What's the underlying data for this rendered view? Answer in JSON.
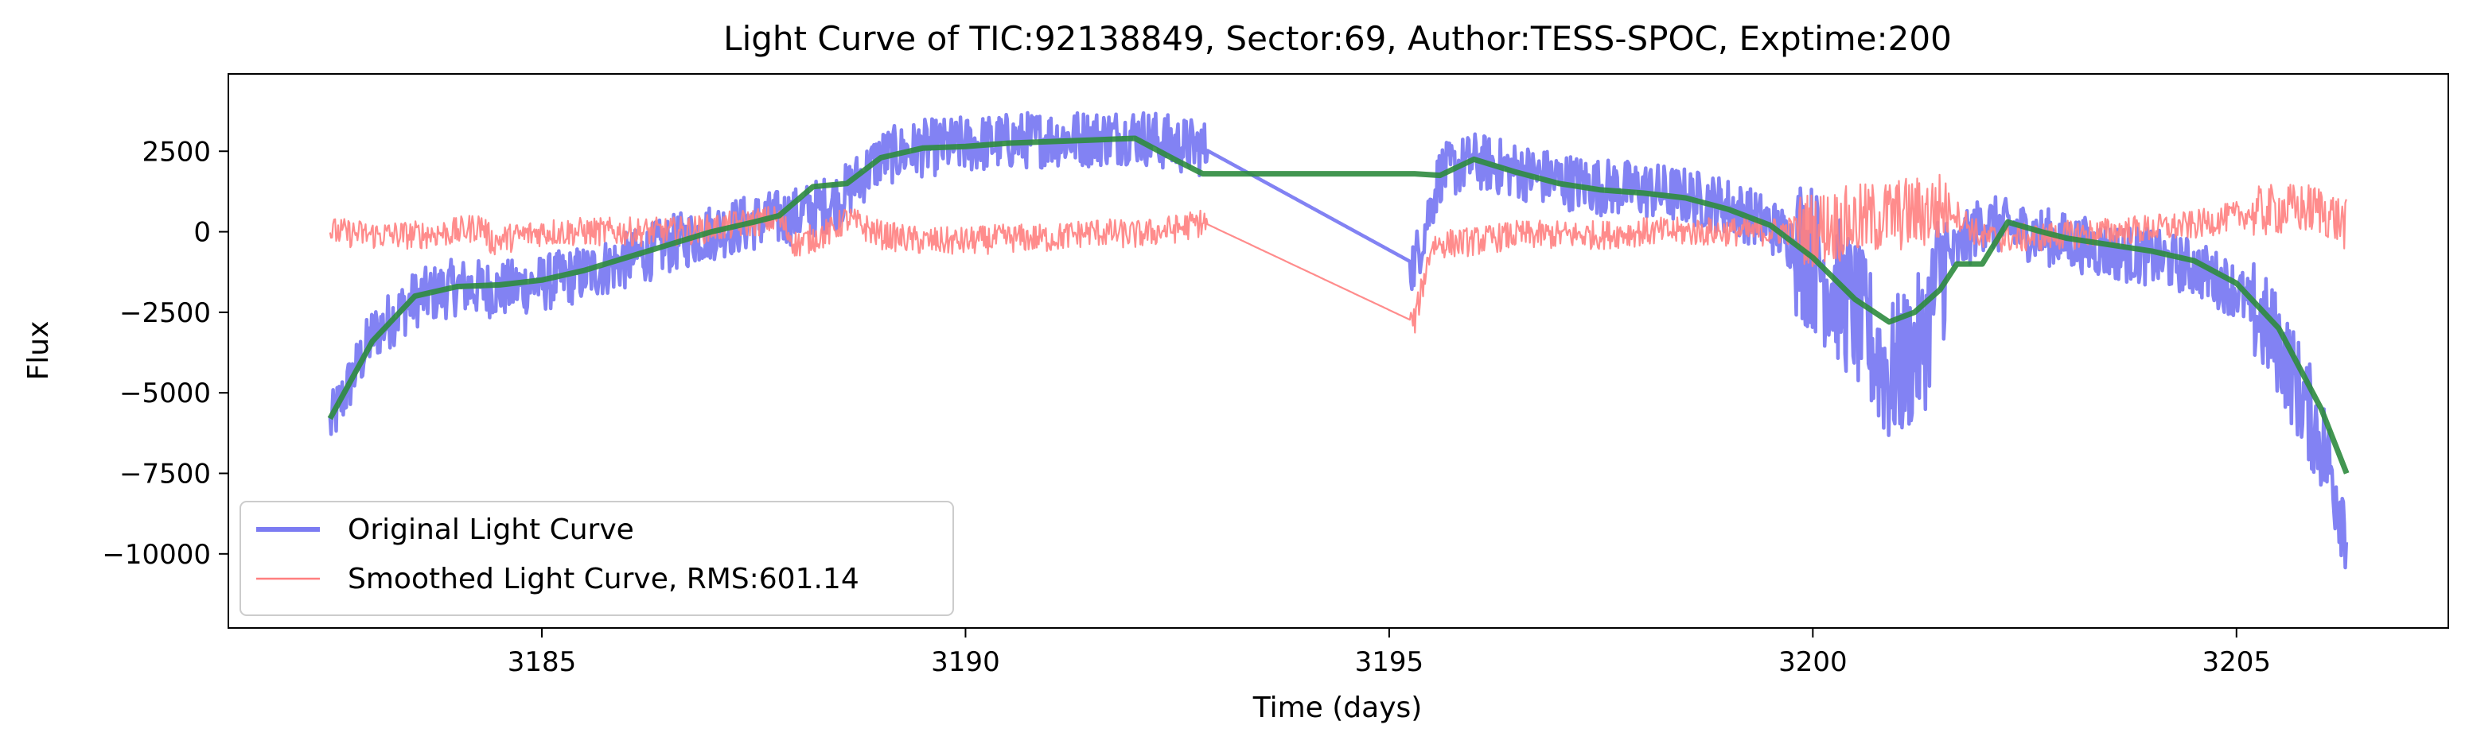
{
  "chart_data": {
    "type": "line",
    "title": "Light Curve of TIC:92138849, Sector:69, Author:TESS-SPOC, Exptime:200",
    "xlabel": "Time (days)",
    "ylabel": "Flux",
    "xlim": [
      3181.3,
      3207.5
    ],
    "ylim": [
      -12300,
      4900
    ],
    "xticks": [
      {
        "value": 3185,
        "label": "3185"
      },
      {
        "value": 3190,
        "label": "3190"
      },
      {
        "value": 3195,
        "label": "3195"
      },
      {
        "value": 3200,
        "label": "3200"
      },
      {
        "value": 3205,
        "label": "3205"
      }
    ],
    "yticks": [
      {
        "value": 2500,
        "label": "2500"
      },
      {
        "value": 0,
        "label": "0"
      },
      {
        "value": -2500,
        "label": "−2500"
      },
      {
        "value": -5000,
        "label": "−5000"
      },
      {
        "value": -7500,
        "label": "−7500"
      },
      {
        "value": -10000,
        "label": "−10000"
      }
    ],
    "grid": false,
    "legend_position": "lower-left",
    "series": [
      {
        "name": "Original Light Curve",
        "color": "#7b7bf2",
        "style": "thick-noisy",
        "noise_amplitude": 900,
        "x": [
          3182.5,
          3183.0,
          3183.5,
          3184.0,
          3184.5,
          3185.0,
          3185.5,
          3186.0,
          3186.5,
          3187.0,
          3187.5,
          3188.0,
          3188.5,
          3189.0,
          3189.5,
          3190.0,
          3190.5,
          3191.0,
          3191.5,
          3192.0,
          3192.5,
          3192.8,
          3195.3,
          3195.6,
          3196.0,
          3196.5,
          3197.0,
          3197.5,
          3198.0,
          3198.5,
          3199.0,
          3199.5,
          3200.0,
          3200.5,
          3200.9,
          3201.3,
          3201.5,
          3202.0,
          3202.5,
          3203.0,
          3203.5,
          3204.0,
          3204.5,
          3205.0,
          3205.5,
          3206.0,
          3206.3
        ],
        "y": [
          -6000,
          -3200,
          -2100,
          -1700,
          -1800,
          -1600,
          -1300,
          -900,
          -400,
          0,
          300,
          500,
          1000,
          2300,
          2600,
          2700,
          2800,
          2900,
          2900,
          3000,
          2700,
          2600,
          -1000,
          1800,
          2200,
          1900,
          1600,
          1400,
          1300,
          1100,
          800,
          200,
          -800,
          -2500,
          -4500,
          -3500,
          -1200,
          300,
          0,
          -300,
          -600,
          -800,
          -1100,
          -1800,
          -3500,
          -6500,
          -9000
        ]
      },
      {
        "name": "Smoothed Light Curve, RMS:601.14",
        "color": "#ff7f7f",
        "style": "thin-noisy",
        "noise_amplitude": 450,
        "x": [
          3182.5,
          3183.0,
          3183.5,
          3184.0,
          3184.3,
          3184.4,
          3185.0,
          3185.5,
          3186.0,
          3186.5,
          3187.0,
          3187.5,
          3187.8,
          3188.0,
          3188.4,
          3188.6,
          3189.0,
          3189.5,
          3190.0,
          3190.5,
          3191.0,
          3191.5,
          3192.0,
          3192.5,
          3192.8,
          3195.3,
          3195.5,
          3196.0,
          3196.5,
          3197.0,
          3197.5,
          3198.0,
          3198.5,
          3199.0,
          3199.5,
          3200.0,
          3200.5,
          3200.9,
          3201.3,
          3201.6,
          3202.0,
          3202.5,
          3203.0,
          3203.5,
          3204.0,
          3204.5,
          3205.0,
          3205.5,
          3206.0,
          3206.3
        ],
        "y": [
          0,
          -100,
          -100,
          0,
          200,
          -300,
          0,
          0,
          0,
          0,
          100,
          300,
          400,
          -400,
          0,
          400,
          -100,
          -300,
          -300,
          -200,
          -200,
          0,
          -100,
          100,
          300,
          -2800,
          -400,
          -300,
          -100,
          -100,
          -100,
          0,
          0,
          0,
          0,
          100,
          300,
          500,
          600,
          800,
          -200,
          -200,
          -100,
          0,
          100,
          200,
          500,
          700,
          700,
          200
        ]
      },
      {
        "name": "",
        "color": "#2e8b3e",
        "style": "smooth",
        "x": [
          3182.5,
          3183.0,
          3183.5,
          3184.0,
          3184.5,
          3185.0,
          3185.5,
          3186.0,
          3186.5,
          3187.0,
          3187.5,
          3187.8,
          3188.2,
          3188.6,
          3189.0,
          3189.5,
          3190.0,
          3190.5,
          3191.0,
          3191.5,
          3192.0,
          3192.5,
          3192.8,
          3195.3,
          3195.6,
          3196.0,
          3196.5,
          3197.0,
          3197.5,
          3198.0,
          3198.5,
          3199.0,
          3199.5,
          3200.0,
          3200.5,
          3200.9,
          3201.2,
          3201.5,
          3201.7,
          3202.0,
          3202.3,
          3202.7,
          3203.0,
          3203.5,
          3204.0,
          3204.5,
          3205.0,
          3205.5,
          3206.0,
          3206.3
        ],
        "y": [
          -5800,
          -3400,
          -2000,
          -1700,
          -1650,
          -1500,
          -1200,
          -800,
          -400,
          0,
          300,
          500,
          1400,
          1500,
          2300,
          2600,
          2650,
          2750,
          2800,
          2850,
          2900,
          2200,
          1800,
          1800,
          1750,
          2250,
          1850,
          1500,
          1300,
          1200,
          1050,
          700,
          200,
          -800,
          -2100,
          -2800,
          -2500,
          -1800,
          -1000,
          -1000,
          300,
          0,
          -200,
          -400,
          -600,
          -900,
          -1600,
          -3000,
          -5500,
          -7500
        ]
      }
    ]
  }
}
